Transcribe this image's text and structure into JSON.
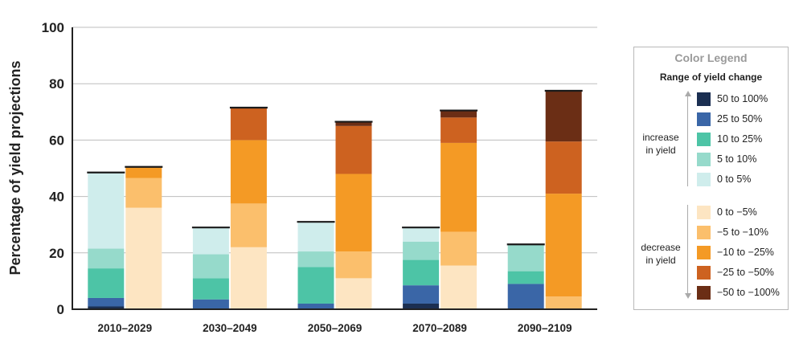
{
  "chart_data": {
    "type": "bar",
    "stacked": true,
    "ylabel": "Percentage of yield projections",
    "ylim": [
      0,
      100
    ],
    "yticks": [
      "0",
      "20",
      "40",
      "60",
      "80",
      "100"
    ],
    "grid": true,
    "legend_position": "right",
    "periods": [
      "2010–2029",
      "2030–2049",
      "2050–2069",
      "2070–2089",
      "2090–2109"
    ],
    "bar_groups": [
      "increase",
      "decrease"
    ],
    "series": [
      {
        "name": "50 to 100%",
        "group": "increase",
        "color": "#1b2f52",
        "values": [
          1,
          0,
          0,
          2,
          0
        ]
      },
      {
        "name": "25 to 50%",
        "group": "increase",
        "color": "#3a66a7",
        "values": [
          3,
          3.5,
          2,
          6.5,
          9
        ]
      },
      {
        "name": "10 to 25%",
        "group": "increase",
        "color": "#4dc4a6",
        "values": [
          10.5,
          7.5,
          13,
          9,
          4.5
        ]
      },
      {
        "name": "5 to 10%",
        "group": "increase",
        "color": "#96dacb",
        "values": [
          7,
          8.5,
          5.5,
          6.5,
          9.5
        ]
      },
      {
        "name": "0 to 5%",
        "group": "increase",
        "color": "#cfedec",
        "values": [
          27,
          9.5,
          10.5,
          5,
          0
        ]
      },
      {
        "name": "0 to −5%",
        "group": "decrease",
        "color": "#fde5c2",
        "values": [
          36,
          22,
          11,
          15.5,
          0
        ]
      },
      {
        "name": "−5 to −10%",
        "group": "decrease",
        "color": "#fbbf6c",
        "values": [
          10.5,
          15.5,
          9.5,
          12,
          4.5
        ]
      },
      {
        "name": "−10 to −25%",
        "group": "decrease",
        "color": "#f49a25",
        "values": [
          4,
          22.5,
          27.5,
          31.5,
          36.5
        ]
      },
      {
        "name": "−25 to −50%",
        "group": "decrease",
        "color": "#cd6220",
        "values": [
          0,
          11.5,
          17,
          9,
          18.5
        ]
      },
      {
        "name": "−50 to −100%",
        "group": "decrease",
        "color": "#6b2e15",
        "values": [
          0,
          0,
          1.5,
          2.5,
          18
        ]
      }
    ]
  },
  "legend": {
    "title": "Color Legend",
    "subtitle": "Range of yield change",
    "increase_label": "increase in yield",
    "decrease_label": "decrease in yield"
  }
}
